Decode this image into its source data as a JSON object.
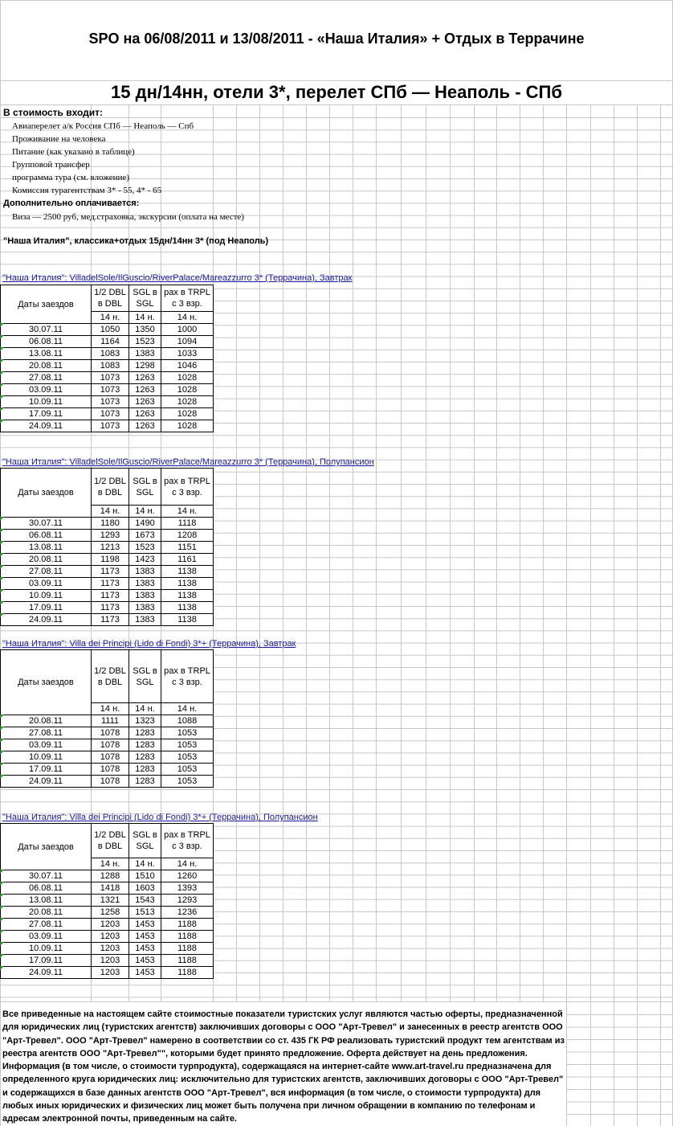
{
  "title": "SPO на 06/08/2011 и 13/08/2011 - «Наша Италия» + Отдых в Террачине",
  "subtitle": "15 дн/14нн, отели 3*, перелет СПб — Неаполь - СПб",
  "includes": {
    "heading": "В стоимость входит:",
    "items": [
      "Авиаперелет а/к Россия  СПб — Неаполь — Спб",
      "Проживание на человека",
      "Питание (как указано в таблице)",
      "Групповой трансфер",
      "программа тура (см. вложение)",
      "Комиссия турагентствам 3* - 55, 4* - 65"
    ]
  },
  "extra": {
    "heading": "Дополнительно оплачивается:",
    "items": [
      "Виза — 2500 руб, мед.страховка, экскурсии (оплата на месте)"
    ]
  },
  "program_title": "\"Наша Италия\", классика+отдых 15дн/14нн 3* (под Неаполь)",
  "tables": [
    {
      "link": "\"Наша Италия\": VilladelSole/IlGuscio/RiverPalace/Mareazzurro 3* (Террачина), Завтрак",
      "date_header": "Даты заездов",
      "headers": [
        [
          "1/2 DBL",
          "в DBL"
        ],
        [
          "SGL в",
          "SGL"
        ],
        [
          "pax в TRPL",
          "с 3 взр."
        ]
      ],
      "nights": [
        "14 н.",
        "14 н.",
        "14 н."
      ],
      "rows": [
        [
          "30.07.11",
          1050,
          1350,
          1000
        ],
        [
          "06.08.11",
          1164,
          1523,
          1094
        ],
        [
          "13.08.11",
          1083,
          1383,
          1033
        ],
        [
          "20.08.11",
          1083,
          1298,
          1046
        ],
        [
          "27.08.11",
          1073,
          1263,
          1028
        ],
        [
          "03.09.11",
          1073,
          1263,
          1028
        ],
        [
          "10.09.11",
          1073,
          1263,
          1028
        ],
        [
          "17.09.11",
          1073,
          1263,
          1028
        ],
        [
          "24.09.11",
          1073,
          1263,
          1028
        ]
      ]
    },
    {
      "link": "\"Наша Италия\": VilladelSole/IlGuscio/RiverPalace/Mareazzurro 3* (Террачина), Полупансион",
      "date_header": "Даты заездов",
      "headers": [
        [
          "1/2 DBL",
          "в DBL"
        ],
        [
          "SGL в",
          "SGL"
        ],
        [
          "pax в TRPL",
          "с 3 взр."
        ]
      ],
      "nights": [
        "14 н.",
        "14 н.",
        "14 н."
      ],
      "rows": [
        [
          "30.07.11",
          1180,
          1490,
          1118
        ],
        [
          "06.08.11",
          1293,
          1673,
          1208
        ],
        [
          "13.08.11",
          1213,
          1523,
          1151
        ],
        [
          "20.08.11",
          1198,
          1423,
          1161
        ],
        [
          "27.08.11",
          1173,
          1383,
          1138
        ],
        [
          "03.09.11",
          1173,
          1383,
          1138
        ],
        [
          "10.09.11",
          1173,
          1383,
          1138
        ],
        [
          "17.09.11",
          1173,
          1383,
          1138
        ],
        [
          "24.09.11",
          1173,
          1383,
          1138
        ]
      ]
    },
    {
      "link": "\"Наша Италия\": Villa dei Principi (Lido di Fondi) 3*+ (Террачина), Завтрак",
      "date_header": "Даты заездов",
      "headers": [
        [
          "1/2 DBL",
          "в DBL"
        ],
        [
          "SGL в",
          "SGL"
        ],
        [
          "pax в TRPL",
          "с 3 взр."
        ]
      ],
      "nights": [
        "14 н.",
        "14 н.",
        "14 н."
      ],
      "rows": [
        [
          "20.08.11",
          1111,
          1323,
          1088
        ],
        [
          "27.08.11",
          1078,
          1283,
          1053
        ],
        [
          "03.09.11",
          1078,
          1283,
          1053
        ],
        [
          "10.09.11",
          1078,
          1283,
          1053
        ],
        [
          "17.09.11",
          1078,
          1283,
          1053
        ],
        [
          "24.09.11",
          1078,
          1283,
          1053
        ]
      ]
    },
    {
      "link": "\"Наша Италия\": Villa dei Principi (Lido di Fondi) 3*+ (Террачина), Полупансион",
      "date_header": "Даты заездов",
      "headers": [
        [
          "1/2 DBL",
          "в DBL"
        ],
        [
          "SGL в",
          "SGL"
        ],
        [
          "pax в TRPL",
          "с 3 взр."
        ]
      ],
      "nights": [
        "14 н.",
        "14 н.",
        "14 н."
      ],
      "rows": [
        [
          "30.07.11",
          1288,
          1510,
          1260
        ],
        [
          "06.08.11",
          1418,
          1603,
          1393
        ],
        [
          "13.08.11",
          1321,
          1543,
          1293
        ],
        [
          "20.08.11",
          1258,
          1513,
          1236
        ],
        [
          "27.08.11",
          1203,
          1453,
          1188
        ],
        [
          "03.09.11",
          1203,
          1453,
          1188
        ],
        [
          "10.09.11",
          1203,
          1453,
          1188
        ],
        [
          "17.09.11",
          1203,
          1453,
          1188
        ],
        [
          "24.09.11",
          1203,
          1453,
          1188
        ]
      ]
    }
  ],
  "footer": "Все приведенные на настоящем сайте стоимостные показатели туристских услуг являются частью оферты, предназначенной для юридических лиц (туристских агентств) заключивших договоры с ООО \"Арт-Тревел\" и занесенных в реестр агентств ООО \"Арт-Тревел\". ООО \"Арт-Тревел\" намерено в соответствии со ст. 435 ГК РФ реализовать туристский продукт тем агентствам из реестра агентств ООО \"Арт-Тревел\"\", которыми будет принято предложение. Оферта действует на день предложения.  Информация (в том числе, о стоимости турпродукта), содержащаяся на интернет-сайте www.art-travel.ru предназначена для определенного круга юридических лиц: исключительно для туристских агентств, заключивших договоры с ООО \"Арт-Тревел\" и содержащихся в базе данных агентств ООО \"Арт-Тревел\", вся информация (в том числе, о стоимости турпродукта) для любых иных юридических и физических лиц может быть получена при личном обращении в компанию по телефонам и адресам электронной почты, приведенным на сайте."
}
